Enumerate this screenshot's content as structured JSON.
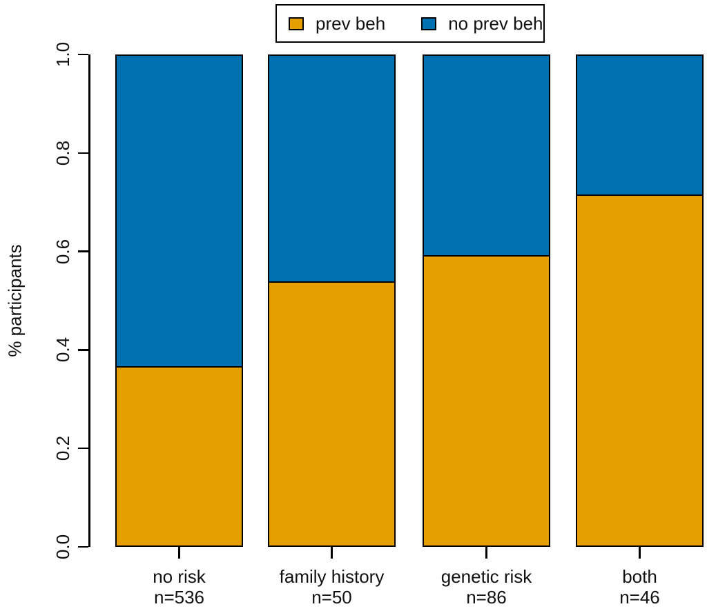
{
  "chart_data": {
    "type": "bar",
    "stacked": true,
    "orientation": "vertical",
    "title": "",
    "xlabel": "",
    "ylabel": "% participants",
    "ylim": [
      0.0,
      1.0
    ],
    "ytick_labels": [
      "0.0",
      "0.2",
      "0.4",
      "0.6",
      "0.8",
      "1.0"
    ],
    "ytick_values": [
      0.0,
      0.2,
      0.4,
      0.6,
      0.8,
      1.0
    ],
    "grid": false,
    "legend_position": "top-center",
    "categories": [
      "no risk",
      "family history",
      "genetic risk",
      "both"
    ],
    "category_counts": [
      "n=536",
      "n=50",
      "n=86",
      "n=46"
    ],
    "series": [
      {
        "name": "prev beh",
        "color": "#E69F00",
        "values": [
          0.366,
          0.54,
          0.593,
          0.717
        ]
      },
      {
        "name": "no prev beh",
        "color": "#0072B2",
        "values": [
          0.634,
          0.46,
          0.407,
          0.283
        ]
      }
    ],
    "bar_border_color": "#000000",
    "axis_color": "#000000",
    "text_color": "#111111"
  }
}
